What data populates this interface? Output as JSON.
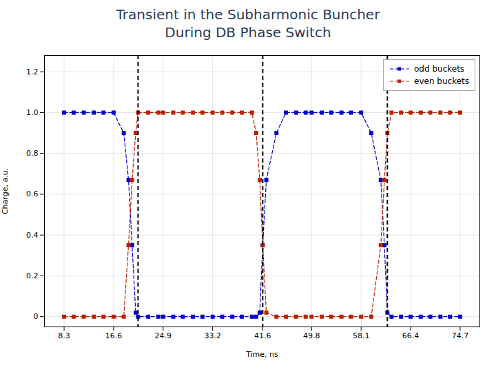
{
  "chart_data": {
    "type": "line",
    "title": "Transient in the Subharmonic Buncher\nDuring DB Phase Switch",
    "xlabel": "Time, ns",
    "ylabel": "Charge, a.u.",
    "x": [
      8.3,
      9.9,
      11.6,
      13.3,
      14.9,
      16.6,
      18.3,
      19.1,
      19.7,
      20.3,
      20.7,
      22.4,
      24.1,
      24.9,
      26.6,
      28.2,
      29.9,
      31.5,
      33.2,
      34.8,
      36.5,
      38.1,
      39.8,
      40.5,
      41.1,
      41.6,
      42.2,
      43.9,
      45.5,
      47.2,
      48.8,
      49.8,
      51.5,
      53.1,
      54.8,
      56.4,
      58.1,
      59.8,
      61.4,
      62.0,
      62.5,
      63.2,
      64.8,
      66.4,
      68.1,
      69.7,
      71.4,
      73.0,
      74.7
    ],
    "series": [
      {
        "name": "odd buckets",
        "color": "#0000cc",
        "marker": "square",
        "line_style": "dashed",
        "values": [
          1.0,
          1.0,
          1.0,
          1.0,
          1.0,
          1.0,
          0.9,
          0.67,
          0.35,
          0.02,
          0.0,
          0.0,
          0.0,
          0.0,
          0.0,
          0.0,
          0.0,
          0.0,
          0.0,
          0.0,
          0.0,
          0.0,
          0.0,
          0.0,
          0.02,
          0.35,
          0.67,
          0.9,
          1.0,
          1.0,
          1.0,
          1.0,
          1.0,
          1.0,
          1.0,
          1.0,
          1.0,
          0.9,
          0.67,
          0.35,
          0.02,
          0.0,
          0.0,
          0.0,
          0.0,
          0.0,
          0.0,
          0.0,
          0.0
        ]
      },
      {
        "name": "even buckets",
        "color": "#bb2200",
        "marker": "square",
        "line_style": "dashed",
        "values": [
          0.0,
          0.0,
          0.0,
          0.0,
          0.0,
          0.0,
          0.0,
          0.35,
          0.67,
          0.9,
          1.0,
          1.0,
          1.0,
          1.0,
          1.0,
          1.0,
          1.0,
          1.0,
          1.0,
          1.0,
          1.0,
          1.0,
          1.0,
          0.9,
          0.67,
          0.35,
          0.02,
          0.0,
          0.0,
          0.0,
          0.0,
          0.0,
          0.0,
          0.0,
          0.0,
          0.0,
          0.0,
          0.0,
          0.35,
          0.67,
          0.9,
          1.0,
          1.0,
          1.0,
          1.0,
          1.0,
          1.0,
          1.0,
          1.0
        ]
      }
    ],
    "vlines": [
      20.7,
      41.6,
      62.5
    ],
    "xlim": [
      5,
      78
    ],
    "ylim": [
      -0.05,
      1.28
    ],
    "xticks": [
      8.3,
      16.6,
      24.9,
      33.2,
      41.6,
      49.8,
      58.1,
      66.4,
      74.7
    ],
    "yticks": [
      0,
      0.2,
      0.4,
      0.6,
      0.8,
      {
        "value": 1.0,
        "label": "1.0"
      },
      1.2
    ],
    "grid": true,
    "legend": "upper right"
  }
}
